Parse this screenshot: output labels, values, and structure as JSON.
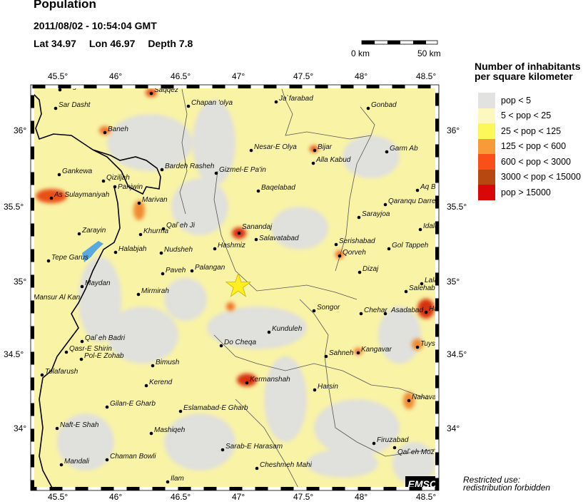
{
  "header": {
    "title": "Population",
    "datetime": "2011/08/02 - 10:54:04 GMT",
    "lat_label": "Lat 34.97",
    "lon_label": "Lon  46.97",
    "depth_label": "Depth  7.8"
  },
  "scale_bar": {
    "start": "0 km",
    "end": "50 km"
  },
  "axes": {
    "lon_ticks": [
      "45.5°",
      "46°",
      "46.5°",
      "47°",
      "47.5°",
      "48°",
      "48.5°"
    ],
    "lat_ticks": [
      "36°",
      "35.5°",
      "35°",
      "34.5°",
      "34°"
    ]
  },
  "epicenter": {
    "lat": 34.97,
    "lon": 46.97,
    "marker": "star-icon",
    "color": "#ffee22"
  },
  "legend": {
    "title_line1": "Number of inhabitants",
    "title_line2": "per square kilometer",
    "items": [
      {
        "label": "pop < 5",
        "color": "#e2e2e0"
      },
      {
        "label": "5 < pop < 25",
        "color": "#fcf8c0"
      },
      {
        "label": "25 < pop < 125",
        "color": "#fcf85a"
      },
      {
        "label": "125 < pop < 600",
        "color": "#f89a38"
      },
      {
        "label": "600 < pop < 3000",
        "color": "#f85018"
      },
      {
        "label": "3000 < pop < 15000",
        "color": "#b84810"
      },
      {
        "label": "pop > 15000",
        "color": "#d80808"
      }
    ]
  },
  "cities": [
    "Valger",
    "Saqqez",
    "Sar Dasht",
    "Chapan 'olya",
    "Ja`farabad",
    "Gonbad",
    "Baneh",
    "Nesar-E Olya",
    "Bijar",
    "Garm Ab",
    "Alla Kabud",
    "Gankewa",
    "Qiziljah",
    "Panjwin",
    "Bardeh Rasheh",
    "Gizmel-E Pa'in",
    "Baqelabad",
    "As Sulaymaniyah",
    "Marivan",
    "Aq Bo",
    "Qaranqu Darre",
    "Sarayjoa",
    "Qal`eh Ji",
    "Idalu",
    "Sanandaj",
    "Salavatabad",
    "Zarayin",
    "Khurma",
    "Hashmiz",
    "Serishabad",
    "Gol Tappeh",
    "Qorveh",
    "Halabjah",
    "Nudsheh",
    "Tepe Garus",
    "Paveh",
    "Palangan",
    "Dizaj",
    "Lala",
    "Salehabad",
    "Mansur Al Kan",
    "Maydan",
    "Mirmirah",
    "Songor",
    "Chehar",
    "Asadabad",
    "Ha",
    "Kunduleh",
    "Qal`eh Badri",
    "Qasr-E Shirin",
    "Do Cheqa",
    "Pol-E Zohab",
    "Tuyse",
    "Sahneh",
    "Kangavar",
    "Bimush",
    "Tolafarush",
    "Kermanshah",
    "Harsin",
    "Kerend",
    "Nahava",
    "Gilan-E Gharb",
    "Eslamabad-E Gharb",
    "Naft-E Shah",
    "Mashiqeh",
    "Firuzabad",
    "Qal`eh Moz",
    "Sarab-E Harasam",
    "Chaman Bowli",
    "Mandali",
    "Cheshmeh Mahi",
    "Ilam"
  ],
  "watermark": "EMSC",
  "notice_line1": "Restricted use:",
  "notice_line2": "redistribution forbidden"
}
